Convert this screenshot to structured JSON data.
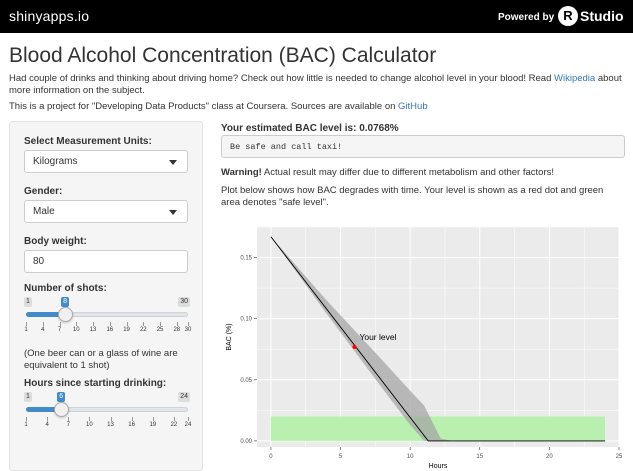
{
  "header": {
    "brand": "shinyapps.io",
    "powered_by": "Powered by",
    "rlogo": "R",
    "studio": "Studio"
  },
  "page": {
    "title": "Blood Alcohol Concentration (BAC) Calculator",
    "intro_prefix": "Had couple of drinks and thinking about driving home? Check out how little is needed to change alcohol level in your blood! Read ",
    "intro_link": "Wikipedia",
    "intro_suffix": " about more information on the subject.",
    "project_prefix": "This is a project for \"Developing Data Products\" class at Coursera. Sources are available on ",
    "project_link": "GitHub"
  },
  "sidebar": {
    "units_label": "Select Measurement Units:",
    "units_value": "Kilograms",
    "gender_label": "Gender:",
    "gender_value": "Male",
    "weight_label": "Body weight:",
    "weight_value": "80",
    "shots_label": "Number of shots:",
    "shots": {
      "min": 1,
      "max": 30,
      "value": 8,
      "min_label": "1",
      "max_label": "30",
      "value_label": "8",
      "ticks": [
        "1",
        "4",
        "7",
        "10",
        "13",
        "16",
        "19",
        "22",
        "25",
        "28",
        "30"
      ]
    },
    "shots_note": "(One beer can or a glass of wine are equivalent to 1 shot)",
    "hours_label": "Hours since starting drinking:",
    "hours": {
      "min": 1,
      "max": 24,
      "value": 6,
      "min_label": "1",
      "max_label": "24",
      "value_label": "6",
      "ticks": [
        "1",
        "4",
        "7",
        "10",
        "13",
        "16",
        "19",
        "22",
        "24"
      ]
    }
  },
  "main": {
    "estimate": "Your estimated BAC level is: 0.0768%",
    "verdict": "Be safe and call taxi!",
    "warning_bold": "Warning!",
    "warning_text": " Actual result may differ due to different metabolism and other factors!",
    "plot_desc": "Plot below shows how BAC degrades with time. Your level is shown as a red dot and green area denotes \"safe level\"."
  },
  "colors": {
    "accent": "#428bca",
    "link": "#337ab7",
    "plot_bg": "#ebebeb",
    "safe_area": "#b9f0b0",
    "band": "#a6a6a6",
    "dot": "#ff0000"
  },
  "chart_data": {
    "type": "line",
    "xlabel": "Hours",
    "ylabel": "BAC (%)",
    "xlim": [
      -1,
      25
    ],
    "ylim": [
      -0.005,
      0.175
    ],
    "xticks": [
      0,
      5,
      10,
      15,
      20,
      25
    ],
    "yticks": [
      0.0,
      0.05,
      0.1,
      0.15
    ],
    "ytick_labels": [
      "0.00",
      "0.05",
      "0.10",
      "0.15"
    ],
    "line": {
      "x": [
        0,
        11.3,
        12,
        24
      ],
      "y": [
        0.167,
        0.0,
        0.0,
        0.0
      ]
    },
    "band": {
      "x": [
        0,
        4,
        8,
        10,
        11,
        12.2,
        13
      ],
      "upper": [
        0.167,
        0.115,
        0.066,
        0.041,
        0.029,
        0.002,
        0.0
      ],
      "lower": [
        0.167,
        0.104,
        0.043,
        0.013,
        0.0,
        0.0,
        0.0
      ]
    },
    "safe_area": {
      "x": [
        0,
        24
      ],
      "y": [
        0,
        0.02
      ]
    },
    "point": {
      "x": 6,
      "y": 0.0768,
      "label": "Your level"
    },
    "grid": true
  }
}
